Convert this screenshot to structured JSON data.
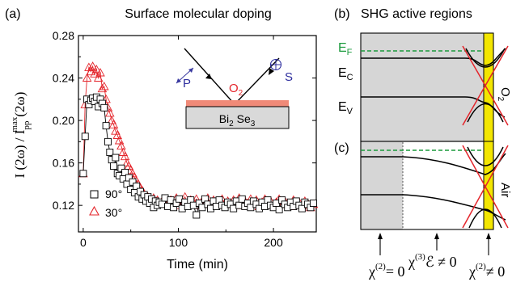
{
  "chart_data": [
    {
      "type": "scatter",
      "panel_label": "(a)",
      "title": "Surface molecular doping",
      "xlabel": "Time (min)",
      "ylabel": "I (2ω) / I",
      "ylabel_sup": "max",
      "ylabel_sub": "pp",
      "ylabel_tail": "(2ω)",
      "xlim": [
        -5,
        245
      ],
      "ylim": [
        0.095,
        0.28
      ],
      "xticks": [
        0,
        100,
        200
      ],
      "yticks": [
        0.12,
        0.16,
        0.2,
        0.24,
        0.28
      ],
      "grid": false,
      "legend_position": "bottom-left",
      "series": [
        {
          "name": "90°",
          "marker": "square",
          "color": "#000000",
          "x": [
            0,
            2,
            4,
            6,
            8,
            10,
            12,
            14,
            16,
            18,
            20,
            22,
            24,
            26,
            28,
            30,
            32,
            34,
            36,
            38,
            40,
            42,
            44,
            46,
            48,
            50,
            52,
            54,
            56,
            58,
            60,
            62,
            64,
            66,
            68,
            70,
            72,
            74,
            76,
            78,
            80,
            83,
            86,
            89,
            92,
            95,
            98,
            101,
            104,
            107,
            110,
            113,
            116,
            119,
            122,
            125,
            128,
            131,
            134,
            137,
            140,
            143,
            146,
            149,
            152,
            155,
            158,
            161,
            164,
            167,
            170,
            173,
            176,
            179,
            182,
            185,
            188,
            191,
            194,
            197,
            200,
            203,
            206,
            209,
            212,
            215,
            218,
            221,
            224,
            227,
            230,
            233,
            236,
            239,
            242
          ],
          "y": [
            0.15,
            0.185,
            0.22,
            0.215,
            0.219,
            0.221,
            0.218,
            0.222,
            0.213,
            0.22,
            0.216,
            0.212,
            0.195,
            0.18,
            0.17,
            0.163,
            0.157,
            0.165,
            0.15,
            0.148,
            0.155,
            0.145,
            0.151,
            0.14,
            0.146,
            0.135,
            0.142,
            0.132,
            0.138,
            0.128,
            0.133,
            0.126,
            0.13,
            0.124,
            0.128,
            0.122,
            0.126,
            0.118,
            0.124,
            0.12,
            0.123,
            0.121,
            0.127,
            0.119,
            0.125,
            0.118,
            0.122,
            0.126,
            0.117,
            0.123,
            0.119,
            0.125,
            0.12,
            0.111,
            0.122,
            0.118,
            0.126,
            0.121,
            0.117,
            0.124,
            0.119,
            0.125,
            0.12,
            0.118,
            0.123,
            0.121,
            0.117,
            0.124,
            0.12,
            0.126,
            0.119,
            0.122,
            0.118,
            0.124,
            0.121,
            0.117,
            0.123,
            0.119,
            0.125,
            0.12,
            0.118,
            0.122,
            0.116,
            0.125,
            0.121,
            0.118,
            0.123,
            0.119,
            0.124,
            0.12,
            0.117,
            0.123,
            0.121,
            0.118,
            0.122
          ]
        },
        {
          "name": "30°",
          "marker": "triangle",
          "color": "#e4252b",
          "x": [
            0,
            2,
            4,
            6,
            8,
            10,
            12,
            14,
            16,
            18,
            20,
            22,
            24,
            26,
            28,
            30,
            32,
            34,
            36,
            38,
            40,
            42,
            44,
            46,
            48,
            50,
            52,
            54,
            56,
            58,
            60,
            62,
            64,
            66,
            68,
            70,
            72,
            74,
            76,
            78,
            80,
            83,
            86,
            89,
            92,
            95,
            98,
            101,
            104,
            107,
            110,
            113,
            116,
            119,
            122,
            125,
            128,
            131,
            134,
            137,
            140,
            143,
            146,
            149,
            152,
            155,
            158,
            161,
            164,
            167,
            170,
            173,
            176,
            179,
            182,
            185,
            188,
            191,
            194,
            197,
            200,
            203,
            206,
            209,
            212,
            215,
            218,
            221,
            224,
            227,
            230,
            233,
            236,
            239,
            242
          ],
          "y": [
            0.15,
            0.215,
            0.24,
            0.25,
            0.246,
            0.251,
            0.244,
            0.248,
            0.24,
            0.245,
            0.23,
            0.232,
            0.22,
            0.212,
            0.207,
            0.2,
            0.196,
            0.19,
            0.186,
            0.181,
            0.176,
            0.17,
            0.166,
            0.16,
            0.157,
            0.153,
            0.15,
            0.146,
            0.143,
            0.14,
            0.136,
            0.134,
            0.131,
            0.129,
            0.128,
            0.126,
            0.125,
            0.127,
            0.123,
            0.125,
            0.122,
            0.124,
            0.126,
            0.121,
            0.125,
            0.122,
            0.127,
            0.12,
            0.124,
            0.128,
            0.121,
            0.125,
            0.123,
            0.126,
            0.12,
            0.124,
            0.122,
            0.127,
            0.121,
            0.125,
            0.123,
            0.12,
            0.126,
            0.122,
            0.124,
            0.121,
            0.125,
            0.123,
            0.127,
            0.12,
            0.124,
            0.122,
            0.126,
            0.121,
            0.125,
            0.119,
            0.123,
            0.126,
            0.121,
            0.124,
            0.12,
            0.123,
            0.126,
            0.121,
            0.124,
            0.122,
            0.119,
            0.125,
            0.121,
            0.123,
            0.12,
            0.124,
            0.122,
            0.118,
            0.121
          ]
        }
      ]
    },
    {
      "type": "diagram",
      "inset": {
        "p_label": "P",
        "gas_label": "O",
        "gas_sub": "2",
        "s_label": "S",
        "crystal_text": "Bi",
        "crystal_sub1": "2",
        "crystal_mid": " Se",
        "crystal_sub2": "3",
        "layer_color": "#f08a78",
        "crystal_color": "#d9d9d9"
      }
    },
    {
      "type": "diagram",
      "panel_b": {
        "label": "(b)",
        "title": "SHG active regions",
        "ef": "E",
        "ef_sub": "F",
        "ec": "E",
        "ec_sub": "C",
        "ev": "E",
        "ev_sub": "V",
        "ambient": "O",
        "ambient_sub": "2",
        "ef_color": "#1a9a3c",
        "cross_color": "#e4252b",
        "surface_color": "#f3e600"
      },
      "panel_c": {
        "label": "(c)",
        "ambient": "Air"
      },
      "annotations": {
        "chi_left": "χ",
        "chi_left_sup": "(2)",
        "chi_left_tail": "= 0",
        "chi_mid": "χ",
        "chi_mid_sup": "(3)",
        "chi_mid_tail": "ℰ ≠ 0",
        "chi_right": "χ",
        "chi_right_sup": "(2)",
        "chi_right_tail": "≠ 0"
      }
    }
  ]
}
